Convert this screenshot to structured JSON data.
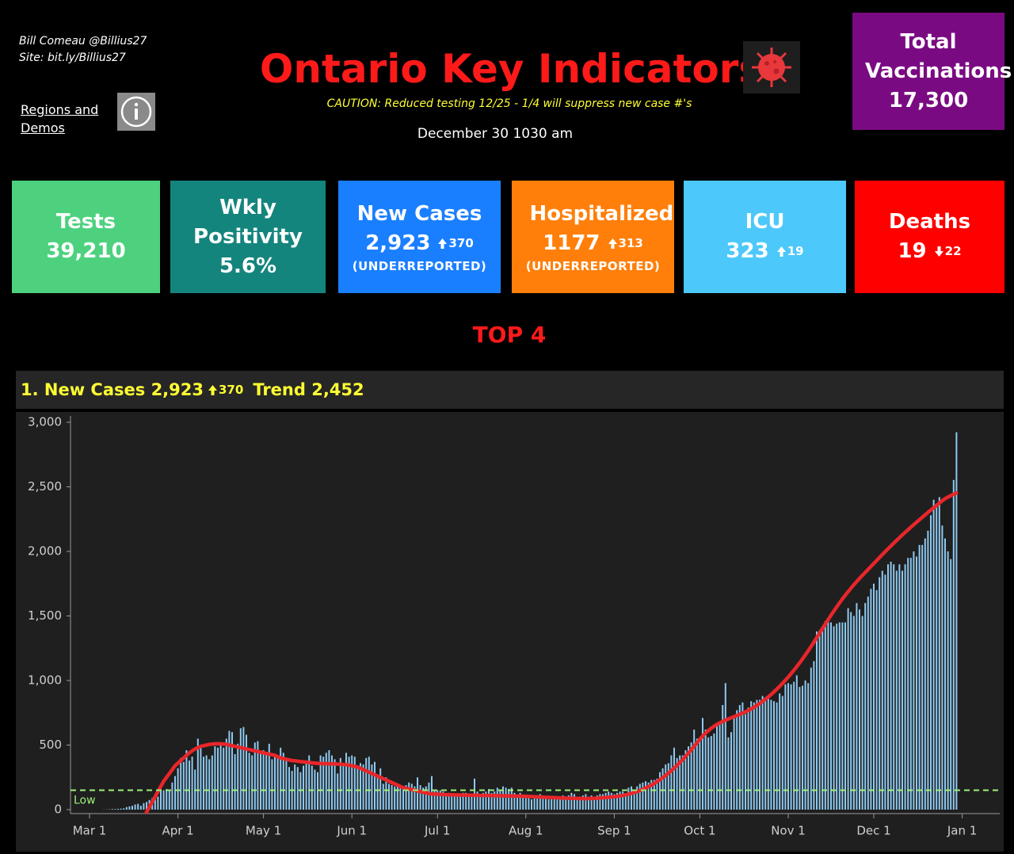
{
  "header": {
    "author": "Bill Comeau @Billius27",
    "site": "Site: bit.ly/Billius27",
    "link": "Regions and Demos",
    "title": "Ontario Key Indicators",
    "caution": "CAUTION: Reduced testing 12/25 - 1/4 will suppress new case #'s",
    "date": "December 30 1030 am",
    "vaccinations_label": "Total Vaccinations",
    "vaccinations_value": "17,300"
  },
  "tiles": [
    {
      "label": "Tests",
      "value": "39,210",
      "color": "#4dd17f"
    },
    {
      "label": "Wkly Positivity",
      "value": "5.6%",
      "color": "#14857d"
    },
    {
      "label": "New Cases",
      "value": "2,923",
      "delta": "370",
      "delta_dir": "up",
      "note": "(UNDERREPORTED)",
      "color": "#1a7fff"
    },
    {
      "label": "Hospitalized",
      "value": "1177",
      "delta": "313",
      "delta_dir": "up",
      "note": "(UNDERREPORTED)",
      "color": "#ff7f0a"
    },
    {
      "label": "ICU",
      "value": "323",
      "delta": "19",
      "delta_dir": "up",
      "color": "#4dc8fa"
    },
    {
      "label": "Deaths",
      "value": "19",
      "delta": "22",
      "delta_dir": "down",
      "color": "#ff0000"
    }
  ],
  "section_title": "TOP 4",
  "chart_data": {
    "type": "bar",
    "title": "1. New Cases 2,923",
    "title_delta": "370",
    "title_delta_dir": "up",
    "subtitle": "Trend 2,452",
    "categories": [
      "Mar 1",
      null,
      null,
      null,
      null,
      null,
      null,
      null,
      null,
      null,
      null,
      null,
      null,
      null,
      null,
      null,
      null,
      null,
      null,
      null,
      null,
      null,
      null,
      null,
      null,
      null,
      null,
      null,
      null,
      null,
      null,
      "Apr 1",
      null,
      null,
      null,
      null,
      null,
      null,
      null,
      null,
      null,
      null,
      null,
      null,
      null,
      null,
      null,
      null,
      null,
      null,
      null,
      null,
      null,
      null,
      null,
      null,
      null,
      null,
      null,
      null,
      null,
      "May 1",
      null,
      null,
      null,
      null,
      null,
      null,
      null,
      null,
      null,
      null,
      null,
      null,
      null,
      null,
      null,
      null,
      null,
      null,
      null,
      null,
      null,
      null,
      null,
      null,
      null,
      null,
      null,
      null,
      null,
      null,
      "Jun 1",
      null,
      null,
      null,
      null,
      null,
      null,
      null,
      null,
      null,
      null,
      null,
      null,
      null,
      null,
      null,
      null,
      null,
      null,
      null,
      null,
      null,
      null,
      null,
      null,
      null,
      null,
      null,
      null,
      null,
      "Jul 1",
      null,
      null,
      null,
      null,
      null,
      null,
      null,
      null,
      null,
      null,
      null,
      null,
      null,
      null,
      null,
      null,
      null,
      null,
      null,
      null,
      null,
      null,
      null,
      null,
      null,
      null,
      null,
      null,
      null,
      null,
      "Aug 1",
      null,
      null,
      null,
      null,
      null,
      null,
      null,
      null,
      null,
      null,
      null,
      null,
      null,
      null,
      null,
      null,
      null,
      null,
      null,
      null,
      null,
      null,
      null,
      null,
      null,
      null,
      null,
      null,
      null,
      null,
      "Sep 1",
      null,
      null,
      null,
      null,
      null,
      null,
      null,
      null,
      null,
      null,
      null,
      null,
      null,
      null,
      null,
      null,
      null,
      null,
      null,
      null,
      null,
      null,
      null,
      null,
      null,
      null,
      null,
      null,
      null,
      "Oct 1",
      null,
      null,
      null,
      null,
      null,
      null,
      null,
      null,
      null,
      null,
      null,
      null,
      null,
      null,
      null,
      null,
      null,
      null,
      null,
      null,
      null,
      null,
      null,
      null,
      null,
      null,
      null,
      null,
      null,
      null,
      "Nov 1",
      null,
      null,
      null,
      null,
      null,
      null,
      null,
      null,
      null,
      null,
      null,
      null,
      null,
      null,
      null,
      null,
      null,
      null,
      null,
      null,
      null,
      null,
      null,
      null,
      null,
      null,
      null,
      null,
      null,
      "Dec 1",
      null,
      null,
      null,
      null,
      null,
      null,
      null,
      null,
      null,
      null,
      null,
      null,
      null,
      null,
      null,
      null,
      null,
      null,
      null,
      null,
      null,
      null,
      null,
      null,
      null,
      null,
      null,
      null,
      null,
      null,
      "Jan 1"
    ],
    "series": [
      {
        "type": "bar",
        "color": "#8ec9f0",
        "values": [
          0,
          0,
          0,
          0,
          0,
          1,
          2,
          3,
          5,
          5,
          6,
          8,
          10,
          20,
          25,
          30,
          40,
          45,
          30,
          50,
          60,
          75,
          90,
          80,
          100,
          170,
          150,
          160,
          150,
          210,
          260,
          320,
          400,
          370,
          460,
          380,
          410,
          310,
          550,
          480,
          410,
          420,
          390,
          420,
          490,
          480,
          500,
          480,
          550,
          610,
          600,
          430,
          510,
          630,
          640,
          580,
          440,
          420,
          520,
          530,
          450,
          460,
          440,
          510,
          390,
          410,
          400,
          480,
          440,
          380,
          330,
          300,
          350,
          330,
          290,
          340,
          380,
          420,
          340,
          310,
          290,
          420,
          410,
          440,
          460,
          420,
          390,
          280,
          400,
          340,
          440,
          410,
          420,
          410,
          340,
          360,
          350,
          400,
          410,
          350,
          370,
          250,
          320,
          200,
          250,
          200,
          190,
          180,
          180,
          180,
          170,
          190,
          210,
          200,
          180,
          250,
          190,
          170,
          180,
          210,
          260,
          150,
          150,
          150,
          140,
          120,
          130,
          110,
          110,
          120,
          120,
          130,
          130,
          120,
          110,
          240,
          140,
          110,
          130,
          140,
          160,
          130,
          140,
          170,
          150,
          180,
          170,
          160,
          170,
          130,
          100,
          130,
          110,
          100,
          90,
          80,
          90,
          100,
          120,
          110,
          100,
          80,
          90,
          90,
          100,
          100,
          110,
          100,
          110,
          130,
          120,
          80,
          100,
          110,
          120,
          100,
          110,
          100,
          110,
          120,
          120,
          130,
          140,
          130,
          120,
          130,
          140,
          140,
          120,
          170,
          180,
          150,
          180,
          200,
          210,
          220,
          210,
          230,
          230,
          240,
          290,
          320,
          350,
          360,
          420,
          480,
          400,
          420,
          420,
          460,
          490,
          520,
          620,
          550,
          560,
          710,
          620,
          560,
          570,
          590,
          650,
          670,
          810,
          980,
          560,
          600,
          730,
          770,
          810,
          830,
          740,
          790,
          840,
          830,
          850,
          850,
          880,
          870,
          860,
          850,
          840,
          830,
          900,
          880,
          970,
          980,
          970,
          990,
          1040,
          950,
          960,
          1000,
          980,
          1100,
          1150,
          1380,
          1390,
          1420,
          1460,
          1460,
          1450,
          1420,
          1440,
          1450,
          1450,
          1450,
          1560,
          1530,
          1500,
          1600,
          1550,
          1500,
          1600,
          1650,
          1710,
          1750,
          1700,
          1800,
          1850,
          1820,
          1900,
          1920,
          1900,
          1850,
          1900,
          1850,
          1900,
          1950,
          1950,
          2000,
          1960,
          2050,
          2050,
          2100,
          2160,
          2280,
          2400,
          2350,
          2420,
          2200,
          2100,
          2000,
          1940,
          2553,
          2923,
          null,
          null
        ]
      },
      {
        "type": "line",
        "color": "#e8262a",
        "values": [
          null,
          null,
          null,
          null,
          null,
          null,
          null,
          null,
          null,
          null,
          null,
          null,
          null,
          null,
          null,
          null,
          null,
          null,
          -100,
          -60,
          -20,
          20,
          60,
          100,
          140,
          180,
          220,
          250,
          280,
          310,
          340,
          360,
          380,
          400,
          420,
          440,
          455,
          470,
          480,
          490,
          495,
          500,
          505,
          508,
          510,
          510,
          510,
          508,
          505,
          500,
          495,
          490,
          485,
          480,
          475,
          470,
          465,
          460,
          455,
          450,
          445,
          440,
          435,
          430,
          425,
          420,
          410,
          400,
          395,
          390,
          385,
          380,
          378,
          375,
          372,
          370,
          368,
          365,
          362,
          360,
          358,
          357,
          356,
          355,
          355,
          355,
          354,
          353,
          352,
          350,
          348,
          345,
          340,
          335,
          330,
          320,
          310,
          300,
          290,
          280,
          270,
          260,
          250,
          240,
          230,
          220,
          210,
          200,
          190,
          180,
          170,
          165,
          160,
          155,
          150,
          145,
          140,
          135,
          130,
          125,
          122,
          120,
          120,
          118,
          117,
          116,
          115,
          115,
          114,
          114,
          113,
          113,
          112,
          112,
          112,
          111,
          111,
          110,
          110,
          110,
          110,
          109,
          109,
          108,
          108,
          107,
          107,
          106,
          106,
          105,
          105,
          104,
          104,
          103,
          102,
          101,
          100,
          99,
          98,
          97,
          96,
          95,
          94,
          93,
          92,
          91,
          90,
          89,
          88,
          88,
          87,
          87,
          86,
          86,
          86,
          86,
          87,
          88,
          89,
          90,
          92,
          94,
          96,
          98,
          100,
          103,
          106,
          110,
          115,
          120,
          126,
          133,
          140,
          148,
          157,
          167,
          178,
          190,
          203,
          217,
          232,
          248,
          265,
          283,
          302,
          322,
          343,
          365,
          388,
          412,
          437,
          463,
          490,
          518,
          545,
          570,
          592,
          612,
          630,
          646,
          660,
          672,
          683,
          693,
          702,
          711,
          720,
          729,
          738,
          747,
          757,
          768,
          780,
          793,
          807,
          822,
          838,
          855,
          873,
          892,
          912,
          933,
          955,
          978,
          1002,
          1027,
          1053,
          1080,
          1108,
          1137,
          1167,
          1198,
          1230,
          1263,
          1297,
          1332,
          1367,
          1402,
          1437,
          1471,
          1505,
          1538,
          1570,
          1601,
          1631,
          1660,
          1688,
          1715,
          1741,
          1766,
          1790,
          1814,
          1837,
          1860,
          1883,
          1906,
          1929,
          1952,
          1975,
          1998,
          2020,
          2042,
          2064,
          2085,
          2106,
          2127,
          2147,
          2167,
          2187,
          2207,
          2226,
          2245,
          2264,
          2283,
          2302,
          2320,
          2338,
          2356,
          2374,
          2392,
          2408,
          2420,
          2432,
          2442,
          2452,
          null,
          null
        ]
      }
    ],
    "reference_line": {
      "value": 150,
      "label": "Low",
      "color": "#9ef07a"
    },
    "ylim": [
      0,
      3000
    ],
    "yticks": [
      0,
      500,
      {
        "value": 1000,
        "label": "1,000"
      },
      {
        "value": 1500,
        "label": "1,500"
      },
      {
        "value": 2000,
        "label": "2,000"
      },
      {
        "value": 2500,
        "label": "2,500"
      },
      {
        "value": 3000,
        "label": "3,000"
      }
    ],
    "grid": false
  }
}
